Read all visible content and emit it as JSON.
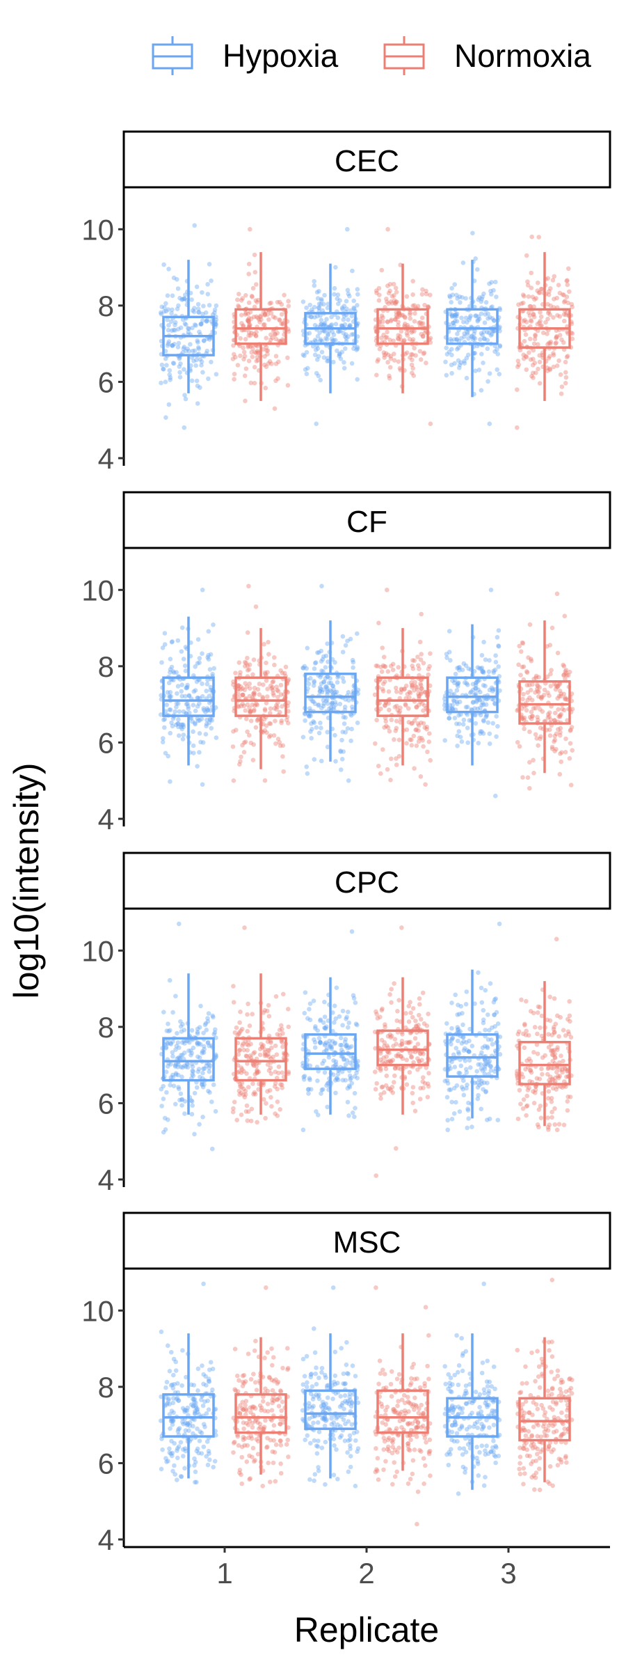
{
  "chart_data": {
    "type": "box",
    "subtype": "faceted boxplot with jittered points",
    "xlabel": "Replicate",
    "ylabel": "log10(intensity)",
    "categories": [
      "1",
      "2",
      "3"
    ],
    "y_ticks": [
      4,
      6,
      8,
      10
    ],
    "ylim": [
      3.8,
      11.1
    ],
    "legend": {
      "placement": "top",
      "entries": [
        "Hypoxia",
        "Normoxia"
      ]
    },
    "colors": {
      "Hypoxia": "#6AA6F2",
      "Normoxia": "#EC7F73"
    },
    "grid": false,
    "facets": [
      {
        "name": "CEC",
        "series": [
          {
            "name": "Hypoxia",
            "boxes": [
              {
                "replicate": "1",
                "min": 5.7,
                "q1": 6.7,
                "median": 7.2,
                "q3": 7.7,
                "max": 9.2,
                "point_min": 4.8,
                "point_max": 10.1
              },
              {
                "replicate": "2",
                "min": 5.7,
                "q1": 7.0,
                "median": 7.4,
                "q3": 7.8,
                "max": 9.1,
                "point_min": 4.9,
                "point_max": 10.0
              },
              {
                "replicate": "3",
                "min": 5.6,
                "q1": 7.0,
                "median": 7.4,
                "q3": 7.9,
                "max": 9.2,
                "point_min": 4.9,
                "point_max": 9.9
              }
            ]
          },
          {
            "name": "Normoxia",
            "boxes": [
              {
                "replicate": "1",
                "min": 5.5,
                "q1": 7.0,
                "median": 7.4,
                "q3": 7.9,
                "max": 9.4,
                "point_min": 5.3,
                "point_max": 10.0
              },
              {
                "replicate": "2",
                "min": 5.7,
                "q1": 7.0,
                "median": 7.4,
                "q3": 7.9,
                "max": 9.1,
                "point_min": 4.9,
                "point_max": 10.0
              },
              {
                "replicate": "3",
                "min": 5.5,
                "q1": 6.9,
                "median": 7.4,
                "q3": 7.9,
                "max": 9.4,
                "point_min": 4.8,
                "point_max": 9.8
              }
            ]
          }
        ]
      },
      {
        "name": "CF",
        "series": [
          {
            "name": "Hypoxia",
            "boxes": [
              {
                "replicate": "1",
                "min": 5.4,
                "q1": 6.7,
                "median": 7.1,
                "q3": 7.7,
                "max": 9.3,
                "point_min": 4.9,
                "point_max": 10.0
              },
              {
                "replicate": "2",
                "min": 5.5,
                "q1": 6.8,
                "median": 7.2,
                "q3": 7.8,
                "max": 9.2,
                "point_min": 5.0,
                "point_max": 10.1
              },
              {
                "replicate": "3",
                "min": 5.4,
                "q1": 6.8,
                "median": 7.2,
                "q3": 7.7,
                "max": 9.1,
                "point_min": 4.6,
                "point_max": 10.0
              }
            ]
          },
          {
            "name": "Normoxia",
            "boxes": [
              {
                "replicate": "1",
                "min": 5.3,
                "q1": 6.7,
                "median": 7.1,
                "q3": 7.7,
                "max": 9.0,
                "point_min": 5.0,
                "point_max": 10.1
              },
              {
                "replicate": "2",
                "min": 5.4,
                "q1": 6.7,
                "median": 7.1,
                "q3": 7.7,
                "max": 9.0,
                "point_min": 4.9,
                "point_max": 10.0
              },
              {
                "replicate": "3",
                "min": 5.2,
                "q1": 6.5,
                "median": 7.0,
                "q3": 7.6,
                "max": 9.2,
                "point_min": 4.8,
                "point_max": 9.9
              }
            ]
          }
        ]
      },
      {
        "name": "CPC",
        "series": [
          {
            "name": "Hypoxia",
            "boxes": [
              {
                "replicate": "1",
                "min": 5.7,
                "q1": 6.6,
                "median": 7.1,
                "q3": 7.7,
                "max": 9.4,
                "point_min": 4.8,
                "point_max": 10.7
              },
              {
                "replicate": "2",
                "min": 5.7,
                "q1": 6.9,
                "median": 7.3,
                "q3": 7.8,
                "max": 9.3,
                "point_min": 5.3,
                "point_max": 10.5
              },
              {
                "replicate": "3",
                "min": 5.6,
                "q1": 6.7,
                "median": 7.2,
                "q3": 7.8,
                "max": 9.5,
                "point_min": 5.3,
                "point_max": 10.7
              }
            ]
          },
          {
            "name": "Normoxia",
            "boxes": [
              {
                "replicate": "1",
                "min": 5.7,
                "q1": 6.6,
                "median": 7.1,
                "q3": 7.7,
                "max": 9.4,
                "point_min": 5.5,
                "point_max": 10.6
              },
              {
                "replicate": "2",
                "min": 5.7,
                "q1": 7.0,
                "median": 7.4,
                "q3": 7.9,
                "max": 9.3,
                "point_min": 4.1,
                "point_max": 10.6
              },
              {
                "replicate": "3",
                "min": 5.4,
                "q1": 6.5,
                "median": 7.0,
                "q3": 7.6,
                "max": 9.2,
                "point_min": 5.3,
                "point_max": 10.3
              }
            ]
          }
        ]
      },
      {
        "name": "MSC",
        "series": [
          {
            "name": "Hypoxia",
            "boxes": [
              {
                "replicate": "1",
                "min": 5.6,
                "q1": 6.7,
                "median": 7.2,
                "q3": 7.8,
                "max": 9.4,
                "point_min": 5.5,
                "point_max": 10.7
              },
              {
                "replicate": "2",
                "min": 5.6,
                "q1": 6.9,
                "median": 7.3,
                "q3": 7.9,
                "max": 9.4,
                "point_min": 5.4,
                "point_max": 10.6
              },
              {
                "replicate": "3",
                "min": 5.3,
                "q1": 6.7,
                "median": 7.2,
                "q3": 7.7,
                "max": 9.4,
                "point_min": 5.2,
                "point_max": 10.7
              }
            ]
          },
          {
            "name": "Normoxia",
            "boxes": [
              {
                "replicate": "1",
                "min": 5.7,
                "q1": 6.8,
                "median": 7.2,
                "q3": 7.8,
                "max": 9.3,
                "point_min": 5.4,
                "point_max": 10.6
              },
              {
                "replicate": "2",
                "min": 5.8,
                "q1": 6.8,
                "median": 7.2,
                "q3": 7.9,
                "max": 9.4,
                "point_min": 4.4,
                "point_max": 10.6
              },
              {
                "replicate": "3",
                "min": 5.5,
                "q1": 6.6,
                "median": 7.1,
                "q3": 7.7,
                "max": 9.3,
                "point_min": 5.3,
                "point_max": 10.8
              }
            ]
          }
        ]
      }
    ]
  }
}
